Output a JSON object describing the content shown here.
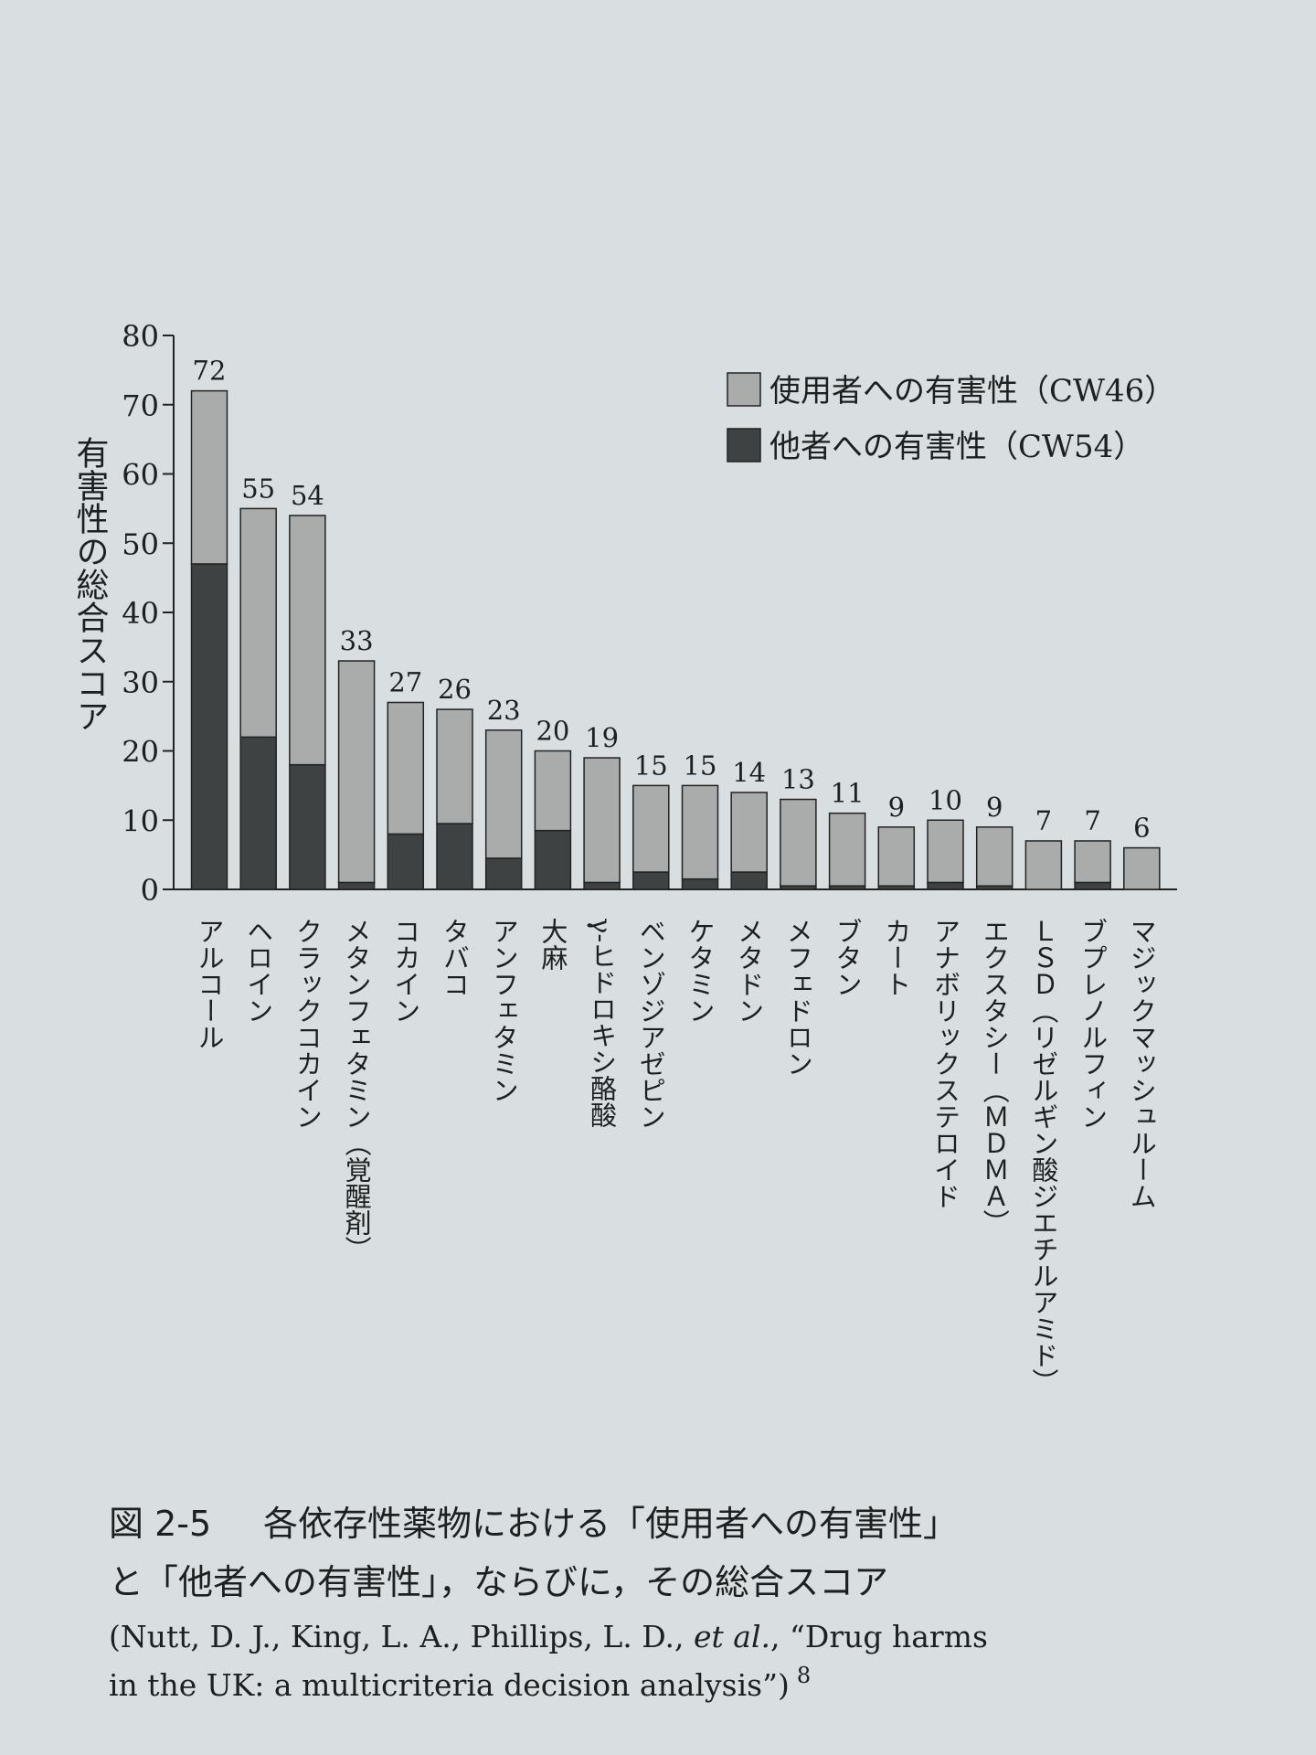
{
  "chart_data": {
    "type": "stacked_bar",
    "y_label": "有害性の総合スコア",
    "categories": [
      "アルコール",
      "ヘロイン",
      "クラックコカイン",
      "メタンフェタミン（覚醒剤）",
      "コカイン",
      "タバコ",
      "アンフェタミン",
      "大麻",
      "γ-ヒドロキシ酪酸",
      "ベンゾジアゼピン",
      "ケタミン",
      "メタドン",
      "メフェドロン",
      "ブタン",
      "カート",
      "アナボリックステロイド",
      "エクスタシー（ＭＤＭＡ）",
      "ＬＳＤ（リゼルギン酸ジエチルアミド）",
      "ブプレノルフィン",
      "マジックマッシュルーム"
    ],
    "series": [
      {
        "name": "使用者への有害性（CW46）",
        "color": "#a9acab",
        "values": [
          25,
          33,
          36,
          32,
          19,
          16.5,
          18.5,
          11.5,
          18,
          12.5,
          13.5,
          11.5,
          12.5,
          10.5,
          8.5,
          9,
          8.5,
          7,
          6,
          6
        ]
      },
      {
        "name": "他者への有害性（CW54）",
        "color": "#3f4242",
        "values": [
          47,
          22,
          18,
          1,
          8,
          9.5,
          4.5,
          8.5,
          1,
          2.5,
          1.5,
          2.5,
          0.5,
          0.5,
          0.5,
          1,
          0.5,
          0,
          1,
          0
        ]
      }
    ],
    "totals": [
      72,
      55,
      54,
      33,
      27,
      26,
      23,
      20,
      19,
      15,
      15,
      14,
      13,
      11,
      9,
      10,
      9,
      7,
      7,
      6
    ],
    "ylim": [
      0,
      80
    ],
    "yticks": [
      0,
      10,
      20,
      30,
      40,
      50,
      60,
      70,
      80
    ],
    "legend": "top-right"
  },
  "caption": {
    "number": "図 2-5",
    "title_lines": [
      "各依存性薬物における「使用者への有害性」",
      "と「他者への有害性」，ならびに，その総合スコア"
    ],
    "citation": [
      "(Nutt, D. J., King, L. A., Phillips, L. D., ",
      "et al.",
      ", “Drug harms",
      "in the UK: a multicriteria decision analysis”)",
      "8"
    ]
  }
}
